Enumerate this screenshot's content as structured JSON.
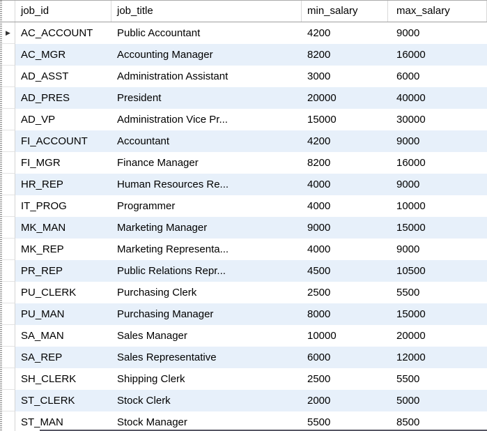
{
  "grid": {
    "columns": [
      {
        "key": "job_id",
        "label": "job_id"
      },
      {
        "key": "job_title",
        "label": "job_title"
      },
      {
        "key": "min_salary",
        "label": "min_salary"
      },
      {
        "key": "max_salary",
        "label": "max_salary"
      }
    ],
    "rows": [
      {
        "job_id": "AC_ACCOUNT",
        "job_title": "Public Accountant",
        "min_salary": "4200",
        "max_salary": "9000"
      },
      {
        "job_id": "AC_MGR",
        "job_title": "Accounting Manager",
        "min_salary": "8200",
        "max_salary": "16000"
      },
      {
        "job_id": "AD_ASST",
        "job_title": "Administration Assistant",
        "min_salary": "3000",
        "max_salary": "6000"
      },
      {
        "job_id": "AD_PRES",
        "job_title": "President",
        "min_salary": "20000",
        "max_salary": "40000"
      },
      {
        "job_id": "AD_VP",
        "job_title": "Administration Vice Pr...",
        "min_salary": "15000",
        "max_salary": "30000"
      },
      {
        "job_id": "FI_ACCOUNT",
        "job_title": "Accountant",
        "min_salary": "4200",
        "max_salary": "9000"
      },
      {
        "job_id": "FI_MGR",
        "job_title": "Finance Manager",
        "min_salary": "8200",
        "max_salary": "16000"
      },
      {
        "job_id": "HR_REP",
        "job_title": "Human Resources Re...",
        "min_salary": "4000",
        "max_salary": "9000"
      },
      {
        "job_id": "IT_PROG",
        "job_title": "Programmer",
        "min_salary": "4000",
        "max_salary": "10000"
      },
      {
        "job_id": "MK_MAN",
        "job_title": "Marketing Manager",
        "min_salary": "9000",
        "max_salary": "15000"
      },
      {
        "job_id": "MK_REP",
        "job_title": "Marketing Representa...",
        "min_salary": "4000",
        "max_salary": "9000"
      },
      {
        "job_id": "PR_REP",
        "job_title": "Public Relations Repr...",
        "min_salary": "4500",
        "max_salary": "10500"
      },
      {
        "job_id": "PU_CLERK",
        "job_title": "Purchasing Clerk",
        "min_salary": "2500",
        "max_salary": "5500"
      },
      {
        "job_id": "PU_MAN",
        "job_title": "Purchasing Manager",
        "min_salary": "8000",
        "max_salary": "15000"
      },
      {
        "job_id": "SA_MAN",
        "job_title": "Sales Manager",
        "min_salary": "10000",
        "max_salary": "20000"
      },
      {
        "job_id": "SA_REP",
        "job_title": "Sales Representative",
        "min_salary": "6000",
        "max_salary": "12000"
      },
      {
        "job_id": "SH_CLERK",
        "job_title": "Shipping Clerk",
        "min_salary": "2500",
        "max_salary": "5500"
      },
      {
        "job_id": "ST_CLERK",
        "job_title": "Stock Clerk",
        "min_salary": "2000",
        "max_salary": "5000"
      },
      {
        "job_id": "ST_MAN",
        "job_title": "Stock Manager",
        "min_salary": "5500",
        "max_salary": "8500"
      }
    ],
    "selected_row_index": 0,
    "selection_indicator": "▶",
    "colors": {
      "alt_row": "#E7F0FA",
      "gutter_border": "#D4D4D4",
      "header_separator": "#D9D9D9",
      "header_bottom": "#9F9F9F",
      "top_border": "#ABABAB",
      "row_divider": "#E3E3E3",
      "bottom_bar": "#565663",
      "arrow": "#333333"
    }
  }
}
